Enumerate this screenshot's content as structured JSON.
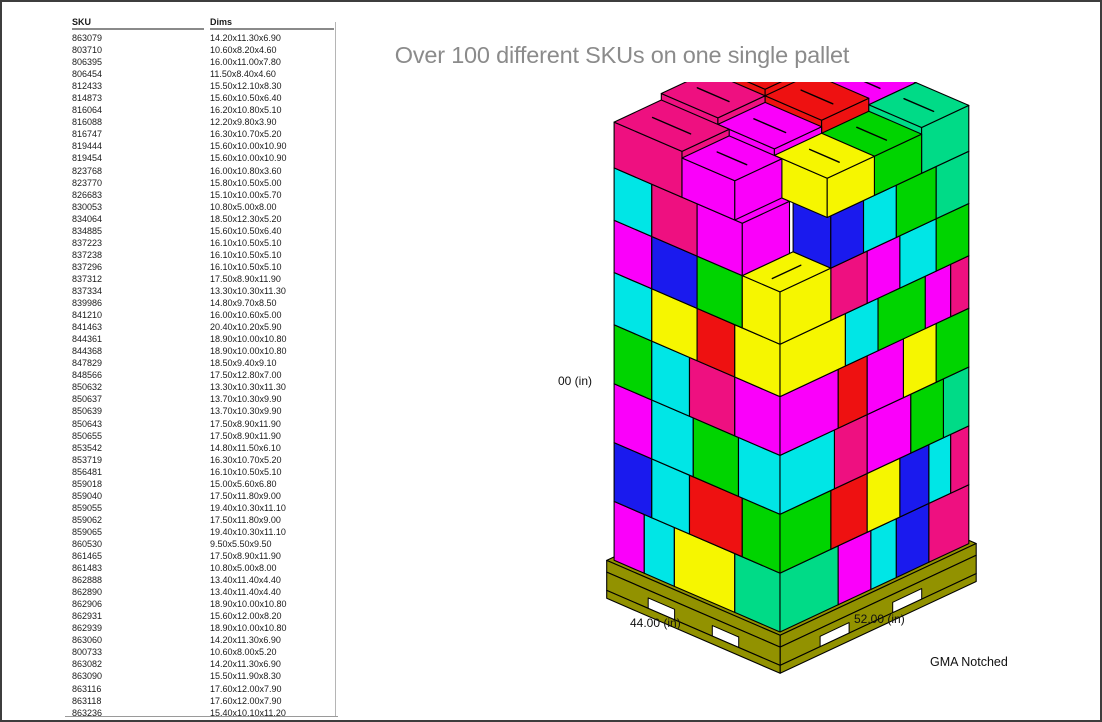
{
  "title": {
    "text": "Over 100 different SKUs on one single pallet",
    "color": "#8b8b8b"
  },
  "sku_table": {
    "headers": {
      "sku": "SKU",
      "dims": "Dims"
    },
    "rows": [
      {
        "sku": "863079",
        "dims": "14.20x11.30x6.90"
      },
      {
        "sku": "803710",
        "dims": "10.60x8.20x4.60"
      },
      {
        "sku": "806395",
        "dims": "16.00x11.00x7.80"
      },
      {
        "sku": "806454",
        "dims": "11.50x8.40x4.60"
      },
      {
        "sku": "812433",
        "dims": "15.50x12.10x8.30"
      },
      {
        "sku": "814873",
        "dims": "15.60x10.50x6.40"
      },
      {
        "sku": "816064",
        "dims": "16.20x10.80x5.10"
      },
      {
        "sku": "816088",
        "dims": "12.20x9.80x3.90"
      },
      {
        "sku": "816747",
        "dims": "16.30x10.70x5.20"
      },
      {
        "sku": "819444",
        "dims": "15.60x10.00x10.90"
      },
      {
        "sku": "819454",
        "dims": "15.60x10.00x10.90"
      },
      {
        "sku": "823768",
        "dims": "16.00x10.80x3.60"
      },
      {
        "sku": "823770",
        "dims": "15.80x10.50x5.00"
      },
      {
        "sku": "826683",
        "dims": "15.10x10.00x5.70"
      },
      {
        "sku": "830053",
        "dims": "10.80x5.00x8.00"
      },
      {
        "sku": "834064",
        "dims": "18.50x12.30x5.20"
      },
      {
        "sku": "834885",
        "dims": "15.60x10.50x6.40"
      },
      {
        "sku": "837223",
        "dims": "16.10x10.50x5.10"
      },
      {
        "sku": "837238",
        "dims": "16.10x10.50x5.10"
      },
      {
        "sku": "837296",
        "dims": "16.10x10.50x5.10"
      },
      {
        "sku": "837312",
        "dims": "17.50x8.90x11.90"
      },
      {
        "sku": "837334",
        "dims": "13.30x10.30x11.30"
      },
      {
        "sku": "839986",
        "dims": "14.80x9.70x8.50"
      },
      {
        "sku": "841210",
        "dims": "16.00x10.60x5.00"
      },
      {
        "sku": "841463",
        "dims": "20.40x10.20x5.90"
      },
      {
        "sku": "844361",
        "dims": "18.90x10.00x10.80"
      },
      {
        "sku": "844368",
        "dims": "18.90x10.00x10.80"
      },
      {
        "sku": "847829",
        "dims": "18.50x9.40x9.10"
      },
      {
        "sku": "848566",
        "dims": "17.50x12.80x7.00"
      },
      {
        "sku": "850632",
        "dims": "13.30x10.30x11.30"
      },
      {
        "sku": "850637",
        "dims": "13.70x10.30x9.90"
      },
      {
        "sku": "850639",
        "dims": "13.70x10.30x9.90"
      },
      {
        "sku": "850643",
        "dims": "17.50x8.90x11.90"
      },
      {
        "sku": "850655",
        "dims": "17.50x8.90x11.90"
      },
      {
        "sku": "853542",
        "dims": "14.80x11.50x6.10"
      },
      {
        "sku": "853719",
        "dims": "16.30x10.70x5.20"
      },
      {
        "sku": "856481",
        "dims": "16.10x10.50x5.10"
      },
      {
        "sku": "859018",
        "dims": "15.00x5.60x6.80"
      },
      {
        "sku": "859040",
        "dims": "17.50x11.80x9.00"
      },
      {
        "sku": "859055",
        "dims": "19.40x10.30x11.10"
      },
      {
        "sku": "859062",
        "dims": "17.50x11.80x9.00"
      },
      {
        "sku": "859065",
        "dims": "19.40x10.30x11.10"
      },
      {
        "sku": "860530",
        "dims": "9.50x5.50x9.50"
      },
      {
        "sku": "861465",
        "dims": "17.50x8.90x11.90"
      },
      {
        "sku": "861483",
        "dims": "10.80x5.00x8.00"
      },
      {
        "sku": "862888",
        "dims": "13.40x11.40x4.40"
      },
      {
        "sku": "862890",
        "dims": "13.40x11.40x4.40"
      },
      {
        "sku": "862906",
        "dims": "18.90x10.00x10.80"
      },
      {
        "sku": "862931",
        "dims": "15.60x12.00x8.20"
      },
      {
        "sku": "862939",
        "dims": "18.90x10.00x10.80"
      },
      {
        "sku": "863060",
        "dims": "14.20x11.30x6.90"
      },
      {
        "sku": "800733",
        "dims": "10.60x8.00x5.20"
      },
      {
        "sku": "863082",
        "dims": "14.20x11.30x6.90"
      },
      {
        "sku": "863090",
        "dims": "15.50x11.90x8.30"
      },
      {
        "sku": "863116",
        "dims": "17.60x12.00x7.90"
      },
      {
        "sku": "863118",
        "dims": "17.60x12.00x7.90"
      },
      {
        "sku": "863236",
        "dims": "15.40x10.10x11.20"
      }
    ]
  },
  "pallet_figure": {
    "height_label": "00 (in)",
    "depth_label": "44.00 (in)",
    "width_label": "52.00 (in)",
    "pallet_type_label": "GMA Notched",
    "wood_color": "#929200",
    "outline_color": "#000000",
    "palette": {
      "R": "#ee1111",
      "P": "#ee1080",
      "M": "#fa00fa",
      "B": "#1a1aee",
      "C": "#00e6e6",
      "G": "#00d400",
      "E": "#00db87",
      "Y": "#f6f600"
    },
    "boxes": [
      [
        0,
        16,
        0,
        12,
        0,
        9,
        "E",
        0
      ],
      [
        16,
        9,
        0,
        10,
        0,
        9,
        "M",
        0
      ],
      [
        25,
        7,
        0,
        10,
        0,
        9,
        "C",
        0
      ],
      [
        32,
        9,
        0,
        10,
        0,
        9,
        "B",
        0
      ],
      [
        41,
        11,
        0,
        10,
        0,
        9,
        "P",
        0
      ],
      [
        0,
        10,
        12,
        16,
        0,
        9,
        "Y",
        0
      ],
      [
        0,
        10,
        28,
        8,
        0,
        9,
        "C",
        0
      ],
      [
        0,
        10,
        36,
        8,
        0,
        9,
        "M",
        0
      ],
      [
        0,
        14,
        0,
        10,
        9,
        9,
        "G",
        0
      ],
      [
        14,
        10,
        0,
        10,
        9,
        9,
        "R",
        0
      ],
      [
        24,
        9,
        0,
        10,
        9,
        9,
        "Y",
        0
      ],
      [
        33,
        8,
        0,
        10,
        9,
        9,
        "B",
        0
      ],
      [
        41,
        6,
        0,
        10,
        9,
        9,
        "C",
        0
      ],
      [
        47,
        5,
        0,
        10,
        9,
        9,
        "P",
        0
      ],
      [
        0,
        10,
        10,
        14,
        9,
        9,
        "R",
        0
      ],
      [
        0,
        10,
        24,
        10,
        9,
        9,
        "C",
        0
      ],
      [
        0,
        10,
        34,
        10,
        9,
        9,
        "B",
        0
      ],
      [
        0,
        15,
        0,
        11,
        18,
        9,
        "C",
        0
      ],
      [
        15,
        9,
        0,
        10,
        18,
        9,
        "P",
        0
      ],
      [
        24,
        12,
        0,
        10,
        18,
        9,
        "M",
        0
      ],
      [
        36,
        9,
        0,
        10,
        18,
        9,
        "G",
        0
      ],
      [
        45,
        7,
        0,
        10,
        18,
        9,
        "E",
        0
      ],
      [
        0,
        10,
        11,
        12,
        18,
        9,
        "G",
        0
      ],
      [
        0,
        10,
        23,
        11,
        18,
        9,
        "C",
        0
      ],
      [
        0,
        10,
        34,
        10,
        18,
        9,
        "M",
        0
      ],
      [
        0,
        16,
        0,
        12,
        27,
        9,
        "M",
        0
      ],
      [
        16,
        8,
        0,
        10,
        27,
        9,
        "R",
        0
      ],
      [
        24,
        10,
        0,
        10,
        27,
        9,
        "M",
        0
      ],
      [
        34,
        9,
        0,
        10,
        27,
        9,
        "Y",
        0
      ],
      [
        43,
        9,
        0,
        10,
        27,
        9,
        "G",
        0
      ],
      [
        0,
        10,
        12,
        12,
        27,
        9,
        "P",
        0
      ],
      [
        0,
        10,
        24,
        10,
        27,
        9,
        "C",
        0
      ],
      [
        0,
        10,
        34,
        10,
        27,
        9,
        "G",
        0
      ],
      [
        0,
        18,
        0,
        12,
        36,
        8,
        "Y",
        0
      ],
      [
        18,
        9,
        0,
        10,
        36,
        8,
        "C",
        0
      ],
      [
        27,
        13,
        0,
        10,
        36,
        8,
        "G",
        0
      ],
      [
        40,
        7,
        0,
        10,
        36,
        8,
        "M",
        0
      ],
      [
        47,
        5,
        0,
        10,
        36,
        8,
        "P",
        0
      ],
      [
        0,
        10,
        12,
        10,
        36,
        8,
        "R",
        0
      ],
      [
        0,
        10,
        22,
        12,
        36,
        8,
        "Y",
        0
      ],
      [
        0,
        10,
        34,
        10,
        36,
        8,
        "C",
        0
      ],
      [
        0,
        14,
        0,
        10,
        44,
        8,
        "Y",
        1
      ],
      [
        14,
        10,
        0,
        10,
        44,
        8,
        "P",
        0
      ],
      [
        24,
        9,
        0,
        10,
        44,
        8,
        "M",
        0
      ],
      [
        33,
        10,
        0,
        10,
        44,
        8,
        "C",
        0
      ],
      [
        43,
        9,
        0,
        10,
        44,
        8,
        "G",
        0
      ],
      [
        0,
        10,
        10,
        12,
        44,
        8,
        "G",
        0
      ],
      [
        0,
        10,
        22,
        12,
        44,
        8,
        "B",
        0
      ],
      [
        0,
        10,
        34,
        10,
        44,
        8,
        "M",
        0
      ],
      [
        14,
        9,
        0,
        10,
        52,
        8,
        "B",
        0
      ],
      [
        23,
        9,
        0,
        10,
        52,
        8,
        "C",
        0
      ],
      [
        32,
        11,
        0,
        10,
        52,
        8,
        "G",
        0
      ],
      [
        43,
        9,
        0,
        10,
        52,
        8,
        "E",
        1
      ],
      [
        0,
        13,
        10,
        12,
        52,
        8,
        "M",
        0
      ],
      [
        0,
        13,
        22,
        12,
        52,
        8,
        "P",
        0
      ],
      [
        0,
        13,
        34,
        10,
        52,
        8,
        "C",
        1
      ],
      [
        0,
        13,
        12,
        14,
        60,
        6,
        "M",
        1
      ],
      [
        0,
        13,
        26,
        18,
        60,
        7,
        "P",
        1
      ],
      [
        13,
        13,
        29,
        15,
        60,
        8,
        "P",
        1
      ],
      [
        26,
        13,
        29,
        15,
        60,
        9,
        "R",
        1
      ],
      [
        39,
        13,
        29,
        15,
        60,
        8,
        "B",
        1
      ],
      [
        13,
        13,
        14,
        15,
        60,
        7,
        "M",
        1
      ],
      [
        26,
        13,
        14,
        15,
        60,
        8,
        "R",
        1
      ],
      [
        39,
        13,
        14,
        15,
        60,
        7,
        "M",
        1
      ],
      [
        13,
        13,
        0,
        14,
        60,
        6,
        "Y",
        1
      ],
      [
        26,
        13,
        0,
        14,
        60,
        6,
        "G",
        1
      ],
      [
        39,
        13,
        0,
        14,
        60,
        7,
        "E",
        1
      ]
    ]
  }
}
